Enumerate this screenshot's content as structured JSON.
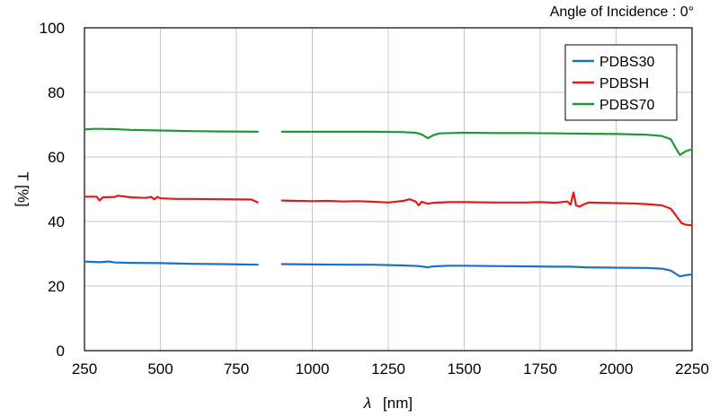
{
  "chart_data": {
    "type": "line",
    "title": "",
    "annotation": "Angle of Incidence : 0°",
    "xlabel_symbol": "λ",
    "xlabel_unit": "[nm]",
    "ylabel": "T [%]",
    "xlim": [
      250,
      2250
    ],
    "ylim": [
      0,
      100
    ],
    "x_ticks": [
      250,
      500,
      750,
      1000,
      1250,
      1500,
      1750,
      2000,
      2250
    ],
    "x_tick_labels": [
      "250",
      "500",
      "750",
      "1000",
      "1250",
      "1500",
      "1750",
      "2000",
      "2250"
    ],
    "y_ticks": [
      0,
      20,
      40,
      60,
      80,
      100
    ],
    "y_tick_labels": [
      "0",
      "20",
      "40",
      "60",
      "80",
      "100"
    ],
    "grid": true,
    "legend_position": "top-right",
    "series": [
      {
        "name": "PDBS30",
        "color": "#1f6fc0",
        "segments": [
          [
            [
              250,
              27.6
            ],
            [
              300,
              27.4
            ],
            [
              330,
              27.6
            ],
            [
              350,
              27.3
            ],
            [
              400,
              27.2
            ],
            [
              500,
              27.1
            ],
            [
              600,
              26.9
            ],
            [
              700,
              26.8
            ],
            [
              820,
              26.6
            ]
          ],
          [
            [
              900,
              26.8
            ],
            [
              1000,
              26.7
            ],
            [
              1100,
              26.6
            ],
            [
              1200,
              26.6
            ],
            [
              1300,
              26.4
            ],
            [
              1350,
              26.2
            ],
            [
              1380,
              25.8
            ],
            [
              1400,
              26.1
            ],
            [
              1450,
              26.3
            ],
            [
              1500,
              26.3
            ],
            [
              1600,
              26.2
            ],
            [
              1700,
              26.1
            ],
            [
              1800,
              26.0
            ],
            [
              1850,
              26.0
            ],
            [
              1900,
              25.8
            ],
            [
              2000,
              25.7
            ],
            [
              2100,
              25.6
            ],
            [
              2150,
              25.4
            ],
            [
              2180,
              24.8
            ],
            [
              2200,
              23.6
            ],
            [
              2210,
              23.0
            ],
            [
              2230,
              23.4
            ],
            [
              2250,
              23.6
            ]
          ]
        ]
      },
      {
        "name": "PDBSH",
        "color": "#e31a1a",
        "segments": [
          [
            [
              250,
              47.7
            ],
            [
              290,
              47.7
            ],
            [
              300,
              46.5
            ],
            [
              310,
              47.5
            ],
            [
              350,
              47.6
            ],
            [
              360,
              48.0
            ],
            [
              400,
              47.5
            ],
            [
              450,
              47.3
            ],
            [
              470,
              47.6
            ],
            [
              480,
              46.9
            ],
            [
              490,
              47.6
            ],
            [
              500,
              47.2
            ],
            [
              550,
              47.0
            ],
            [
              600,
              47.0
            ],
            [
              700,
              46.9
            ],
            [
              800,
              46.8
            ],
            [
              820,
              45.9
            ]
          ],
          [
            [
              900,
              46.5
            ],
            [
              950,
              46.4
            ],
            [
              1000,
              46.3
            ],
            [
              1050,
              46.4
            ],
            [
              1100,
              46.2
            ],
            [
              1150,
              46.3
            ],
            [
              1200,
              46.1
            ],
            [
              1250,
              45.9
            ],
            [
              1300,
              46.4
            ],
            [
              1320,
              46.9
            ],
            [
              1340,
              46.2
            ],
            [
              1350,
              45.0
            ],
            [
              1360,
              46.1
            ],
            [
              1380,
              45.5
            ],
            [
              1400,
              45.8
            ],
            [
              1450,
              46.0
            ],
            [
              1500,
              46.0
            ],
            [
              1600,
              45.9
            ],
            [
              1700,
              45.9
            ],
            [
              1750,
              46.0
            ],
            [
              1800,
              45.8
            ],
            [
              1840,
              46.2
            ],
            [
              1850,
              45.2
            ],
            [
              1860,
              49.0
            ],
            [
              1868,
              45.0
            ],
            [
              1880,
              44.6
            ],
            [
              1895,
              45.4
            ],
            [
              1910,
              45.9
            ],
            [
              2000,
              45.7
            ],
            [
              2050,
              45.6
            ],
            [
              2100,
              45.4
            ],
            [
              2150,
              45.0
            ],
            [
              2180,
              44.0
            ],
            [
              2200,
              41.5
            ],
            [
              2215,
              39.5
            ],
            [
              2230,
              39.0
            ],
            [
              2250,
              38.8
            ]
          ]
        ]
      },
      {
        "name": "PDBS70",
        "color": "#1d9a36",
        "segments": [
          [
            [
              250,
              68.5
            ],
            [
              280,
              68.7
            ],
            [
              300,
              68.7
            ],
            [
              350,
              68.6
            ],
            [
              400,
              68.4
            ],
            [
              500,
              68.2
            ],
            [
              600,
              68.0
            ],
            [
              700,
              67.9
            ],
            [
              820,
              67.8
            ]
          ],
          [
            [
              900,
              67.8
            ],
            [
              1000,
              67.8
            ],
            [
              1100,
              67.8
            ],
            [
              1200,
              67.8
            ],
            [
              1300,
              67.7
            ],
            [
              1340,
              67.5
            ],
            [
              1360,
              67.0
            ],
            [
              1380,
              65.8
            ],
            [
              1400,
              66.8
            ],
            [
              1420,
              67.3
            ],
            [
              1500,
              67.5
            ],
            [
              1600,
              67.4
            ],
            [
              1700,
              67.4
            ],
            [
              1800,
              67.3
            ],
            [
              1900,
              67.2
            ],
            [
              2000,
              67.1
            ],
            [
              2100,
              66.9
            ],
            [
              2150,
              66.5
            ],
            [
              2180,
              65.5
            ],
            [
              2195,
              63.0
            ],
            [
              2210,
              60.6
            ],
            [
              2230,
              61.8
            ],
            [
              2250,
              62.4
            ]
          ]
        ]
      }
    ]
  }
}
